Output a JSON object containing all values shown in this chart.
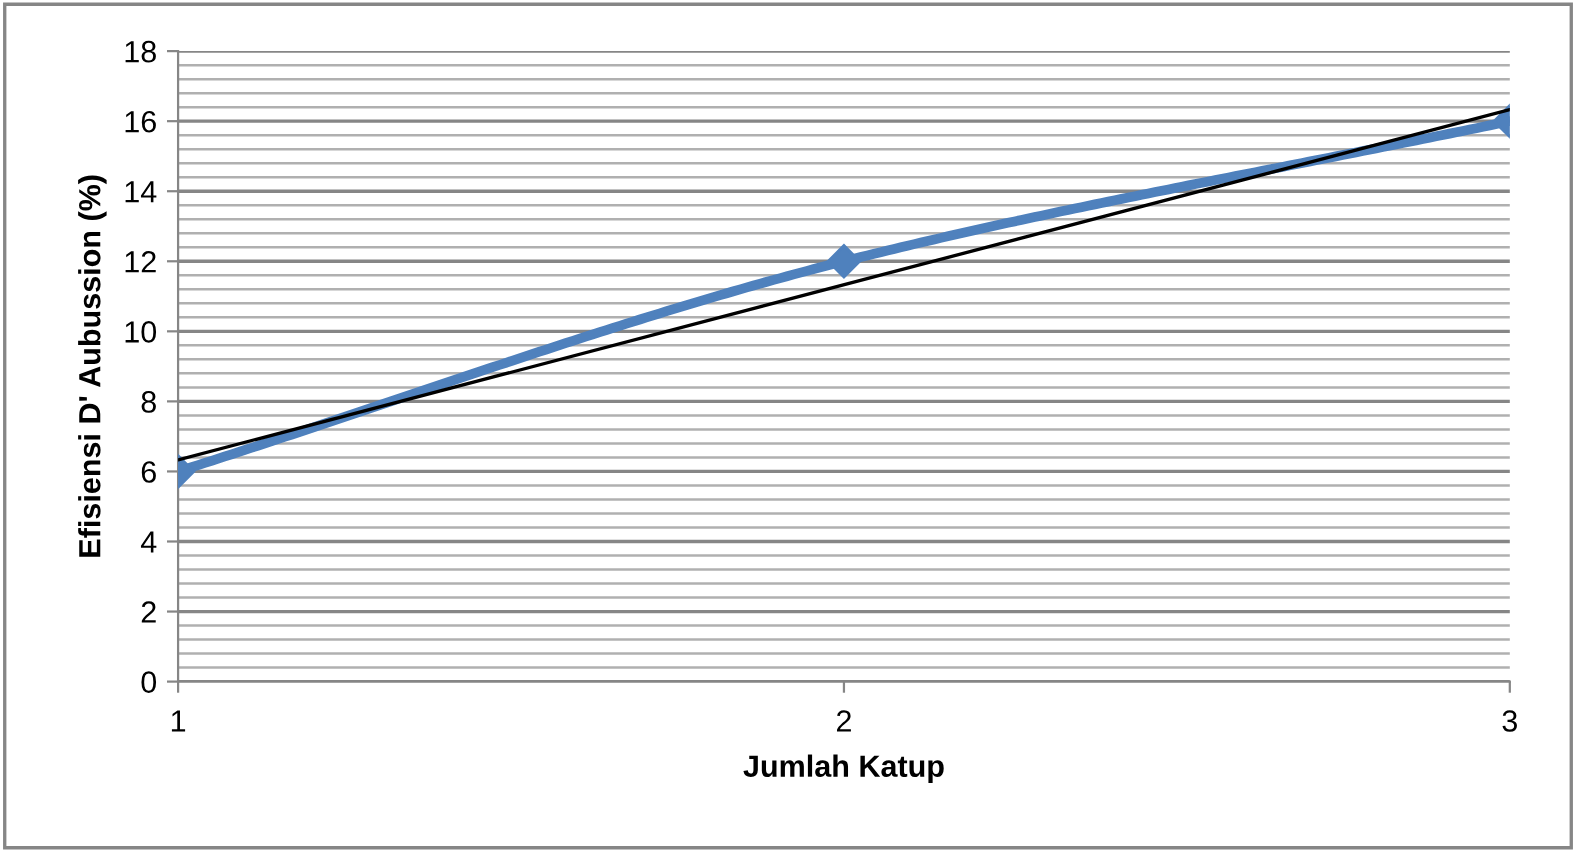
{
  "chart_data": {
    "type": "line",
    "xlabel": "Jumlah Katup",
    "ylabel": "Efisiensi D' Aubussion (%)",
    "x": [
      1,
      2,
      3
    ],
    "series": [
      {
        "color": "#4f81bd",
        "values": [
          6,
          12,
          16
        ],
        "marker": "diamond"
      },
      {
        "color": "#000000",
        "x": [
          1,
          3
        ],
        "values": [
          6.33,
          16.33
        ],
        "marker": "none"
      }
    ],
    "xlim": [
      1,
      3
    ],
    "xticks": [
      1,
      2,
      3
    ],
    "ylim": [
      0,
      18
    ],
    "yticks": [
      0,
      2,
      4,
      6,
      8,
      10,
      12,
      14,
      16,
      18
    ],
    "grid": "y",
    "legend": false
  }
}
